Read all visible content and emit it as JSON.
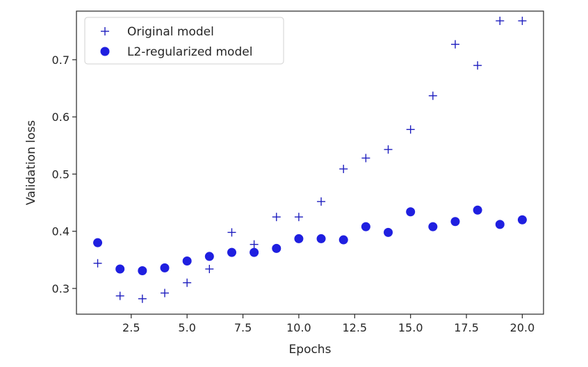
{
  "chart_data": {
    "type": "scatter",
    "title": "",
    "xlabel": "Epochs",
    "ylabel": "Validation loss",
    "xlim": [
      0.05,
      20.95
    ],
    "ylim": [
      0.255,
      0.785
    ],
    "xticks": [
      2.5,
      5.0,
      7.5,
      10.0,
      12.5,
      15.0,
      17.5,
      20.0
    ],
    "xtick_labels": [
      "2.5",
      "5.0",
      "7.5",
      "10.0",
      "12.5",
      "15.0",
      "17.5",
      "20.0"
    ],
    "yticks": [
      0.3,
      0.4,
      0.5,
      0.6,
      0.7
    ],
    "ytick_labels": [
      "0.3",
      "0.4",
      "0.5",
      "0.6",
      "0.7"
    ],
    "grid": false,
    "legend_position": "upper-left",
    "x": [
      1,
      2,
      3,
      4,
      5,
      6,
      7,
      8,
      9,
      10,
      11,
      12,
      13,
      14,
      15,
      16,
      17,
      18,
      19,
      20
    ],
    "series": [
      {
        "name": "Original model",
        "marker": "plus",
        "color": "#1f1fbf",
        "values": [
          0.344,
          0.287,
          0.282,
          0.292,
          0.31,
          0.334,
          0.398,
          0.377,
          0.425,
          0.425,
          0.452,
          0.509,
          0.528,
          0.543,
          0.578,
          0.637,
          0.727,
          0.69,
          0.768,
          0.768
        ]
      },
      {
        "name": "L2-regularized model",
        "marker": "circle",
        "color": "#1f1fe0",
        "values": [
          0.38,
          0.334,
          0.331,
          0.336,
          0.348,
          0.356,
          0.363,
          0.363,
          0.37,
          0.387,
          0.387,
          0.385,
          0.408,
          0.398,
          0.434,
          0.408,
          0.417,
          0.437,
          0.412,
          0.42
        ]
      }
    ]
  }
}
